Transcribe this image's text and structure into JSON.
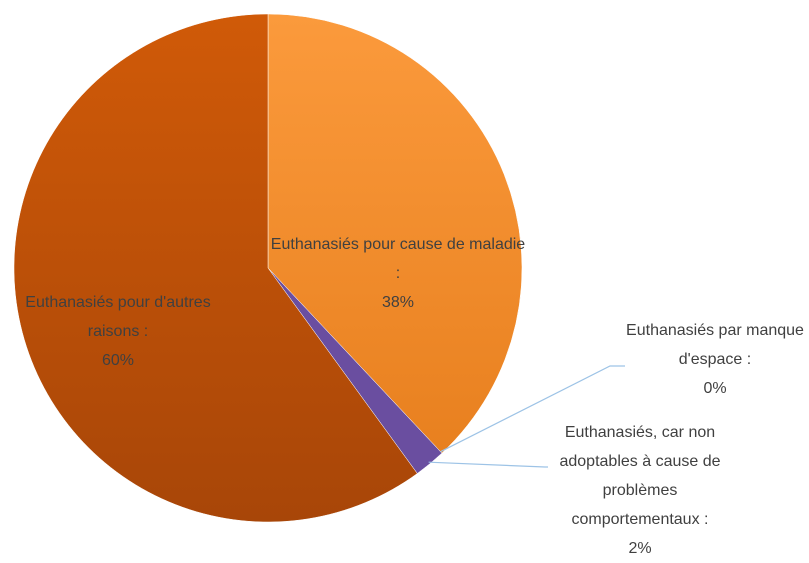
{
  "chart_data": {
    "type": "pie",
    "categories": [
      "Euthanasiés pour cause de maladie :",
      "Euthanasiés par manque d'espace :",
      "Euthanasiés, car non adoptables à cause de problèmes comportementaux :",
      "Euthanasiés pour d'autres raisons :"
    ],
    "values": [
      38,
      0,
      2,
      60
    ],
    "value_labels": [
      "38%",
      "0%",
      "2%",
      "60%"
    ],
    "colors": [
      "#f7922c",
      "#4a7ebb",
      "#6a4ea0",
      "#c0540e"
    ]
  }
}
